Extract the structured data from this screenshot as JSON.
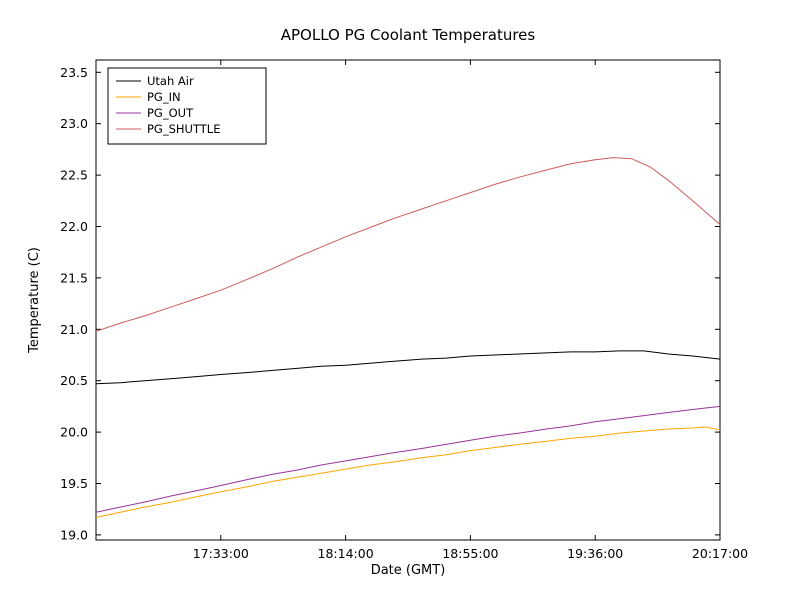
{
  "figure": {
    "background": "#ffffff",
    "frame_color": "#000000"
  },
  "chart_data": {
    "type": "line",
    "title": "APOLLO PG Coolant Temperatures",
    "xlabel": "Date (GMT)",
    "ylabel": "Temperature (C)",
    "x_unit": "minutes since 16:52:00 GMT",
    "xlim": [
      0,
      205
    ],
    "ylim": [
      18.95,
      23.62
    ],
    "grid": false,
    "legend_position": "upper left",
    "xticks": [
      {
        "t": 41,
        "label": "17:33:00"
      },
      {
        "t": 82,
        "label": "18:14:00"
      },
      {
        "t": 123,
        "label": "18:55:00"
      },
      {
        "t": 164,
        "label": "19:36:00"
      },
      {
        "t": 205,
        "label": "20:17:00"
      }
    ],
    "yticks": [
      {
        "v": 19.0,
        "label": "19.0"
      },
      {
        "v": 19.5,
        "label": "19.5"
      },
      {
        "v": 20.0,
        "label": "20.0"
      },
      {
        "v": 20.5,
        "label": "20.5"
      },
      {
        "v": 21.0,
        "label": "21.0"
      },
      {
        "v": 21.5,
        "label": "21.5"
      },
      {
        "v": 22.0,
        "label": "22.0"
      },
      {
        "v": 22.5,
        "label": "22.5"
      },
      {
        "v": 23.0,
        "label": "23.0"
      },
      {
        "v": 23.5,
        "label": "23.5"
      }
    ],
    "series": [
      {
        "name": "Utah Air",
        "color": "#000000",
        "points": [
          [
            0,
            20.47
          ],
          [
            8,
            20.48
          ],
          [
            16,
            20.5
          ],
          [
            25,
            20.52
          ],
          [
            33,
            20.54
          ],
          [
            41,
            20.56
          ],
          [
            50,
            20.58
          ],
          [
            58,
            20.6
          ],
          [
            66,
            20.62
          ],
          [
            74,
            20.64
          ],
          [
            82,
            20.65
          ],
          [
            90,
            20.67
          ],
          [
            98,
            20.69
          ],
          [
            107,
            20.71
          ],
          [
            115,
            20.72
          ],
          [
            123,
            20.74
          ],
          [
            131,
            20.75
          ],
          [
            139,
            20.76
          ],
          [
            148,
            20.77
          ],
          [
            156,
            20.78
          ],
          [
            164,
            20.78
          ],
          [
            172,
            20.79
          ],
          [
            180,
            20.79
          ],
          [
            188,
            20.76
          ],
          [
            196,
            20.74
          ],
          [
            205,
            20.71
          ]
        ]
      },
      {
        "name": "PG_IN",
        "color": "#ffa500",
        "points": [
          [
            0,
            19.17
          ],
          [
            8,
            19.22
          ],
          [
            16,
            19.27
          ],
          [
            25,
            19.32
          ],
          [
            33,
            19.37
          ],
          [
            41,
            19.42
          ],
          [
            50,
            19.47
          ],
          [
            58,
            19.52
          ],
          [
            66,
            19.56
          ],
          [
            74,
            19.6
          ],
          [
            82,
            19.64
          ],
          [
            90,
            19.68
          ],
          [
            98,
            19.71
          ],
          [
            107,
            19.75
          ],
          [
            115,
            19.78
          ],
          [
            123,
            19.82
          ],
          [
            131,
            19.85
          ],
          [
            139,
            19.88
          ],
          [
            148,
            19.91
          ],
          [
            156,
            19.94
          ],
          [
            164,
            19.96
          ],
          [
            172,
            19.99
          ],
          [
            180,
            20.01
          ],
          [
            188,
            20.03
          ],
          [
            196,
            20.04
          ],
          [
            200,
            20.05
          ],
          [
            205,
            20.02
          ]
        ]
      },
      {
        "name": "PG_OUT",
        "color": "#993399",
        "points": [
          [
            0,
            19.22
          ],
          [
            8,
            19.27
          ],
          [
            16,
            19.32
          ],
          [
            25,
            19.38
          ],
          [
            33,
            19.43
          ],
          [
            41,
            19.48
          ],
          [
            50,
            19.54
          ],
          [
            58,
            19.59
          ],
          [
            66,
            19.63
          ],
          [
            74,
            19.68
          ],
          [
            82,
            19.72
          ],
          [
            90,
            19.76
          ],
          [
            98,
            19.8
          ],
          [
            107,
            19.84
          ],
          [
            115,
            19.88
          ],
          [
            123,
            19.92
          ],
          [
            131,
            19.96
          ],
          [
            139,
            19.99
          ],
          [
            148,
            20.03
          ],
          [
            156,
            20.06
          ],
          [
            164,
            20.1
          ],
          [
            172,
            20.13
          ],
          [
            180,
            20.16
          ],
          [
            188,
            20.19
          ],
          [
            196,
            20.22
          ],
          [
            205,
            20.25
          ]
        ]
      },
      {
        "name": "PG_SHUTTLE",
        "color": "#cd5c5c",
        "points": [
          [
            0,
            20.98
          ],
          [
            8,
            21.06
          ],
          [
            16,
            21.13
          ],
          [
            25,
            21.22
          ],
          [
            33,
            21.3
          ],
          [
            41,
            21.38
          ],
          [
            50,
            21.49
          ],
          [
            58,
            21.59
          ],
          [
            66,
            21.7
          ],
          [
            74,
            21.8
          ],
          [
            82,
            21.9
          ],
          [
            90,
            21.99
          ],
          [
            98,
            22.08
          ],
          [
            107,
            22.17
          ],
          [
            115,
            22.25
          ],
          [
            123,
            22.33
          ],
          [
            131,
            22.41
          ],
          [
            139,
            22.48
          ],
          [
            148,
            22.55
          ],
          [
            156,
            22.61
          ],
          [
            164,
            22.65
          ],
          [
            170,
            22.67
          ],
          [
            176,
            22.66
          ],
          [
            182,
            22.58
          ],
          [
            188,
            22.45
          ],
          [
            196,
            22.25
          ],
          [
            205,
            22.02
          ]
        ]
      }
    ]
  }
}
